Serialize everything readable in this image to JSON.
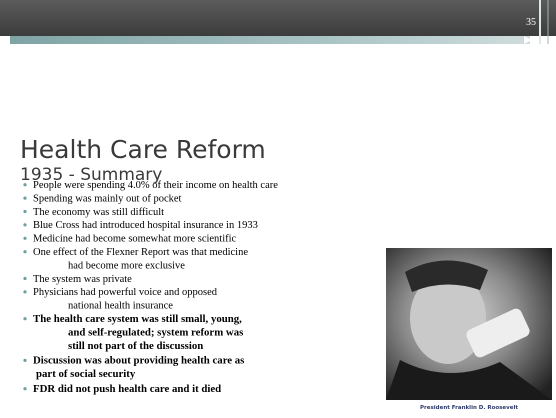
{
  "slide": {
    "number": "35",
    "title": "Health Care Reform",
    "subtitle": "1935 - Summary",
    "bullets": [
      {
        "lines": [
          "People were spending 4.0% of their income on health care"
        ]
      },
      {
        "lines": [
          "Spending was mainly out of pocket"
        ]
      },
      {
        "lines": [
          "The economy was still difficult"
        ]
      },
      {
        "lines": [
          "Blue Cross had introduced hospital insurance in 1933"
        ]
      },
      {
        "lines": [
          "Medicine had become somewhat more scientific"
        ]
      },
      {
        "lines": [
          "One effect of the Flexner Report was that medicine",
          "had become more exclusive"
        ]
      },
      {
        "lines": [
          "The system was private"
        ]
      },
      {
        "lines": [
          "Physicians had powerful voice and opposed",
          "national health insurance"
        ]
      },
      {
        "lines": [
          "The health care system was still small, young,",
          "and self-regulated; system reform was",
          "still not part of the discussion"
        ]
      },
      {
        "lines": [
          "Discussion was about providing health care as",
          "part of  social security"
        ]
      },
      {
        "lines": [
          "FDR did not push health care and it died"
        ]
      }
    ],
    "photo_caption": "President Franklin D. Roosevelt"
  }
}
